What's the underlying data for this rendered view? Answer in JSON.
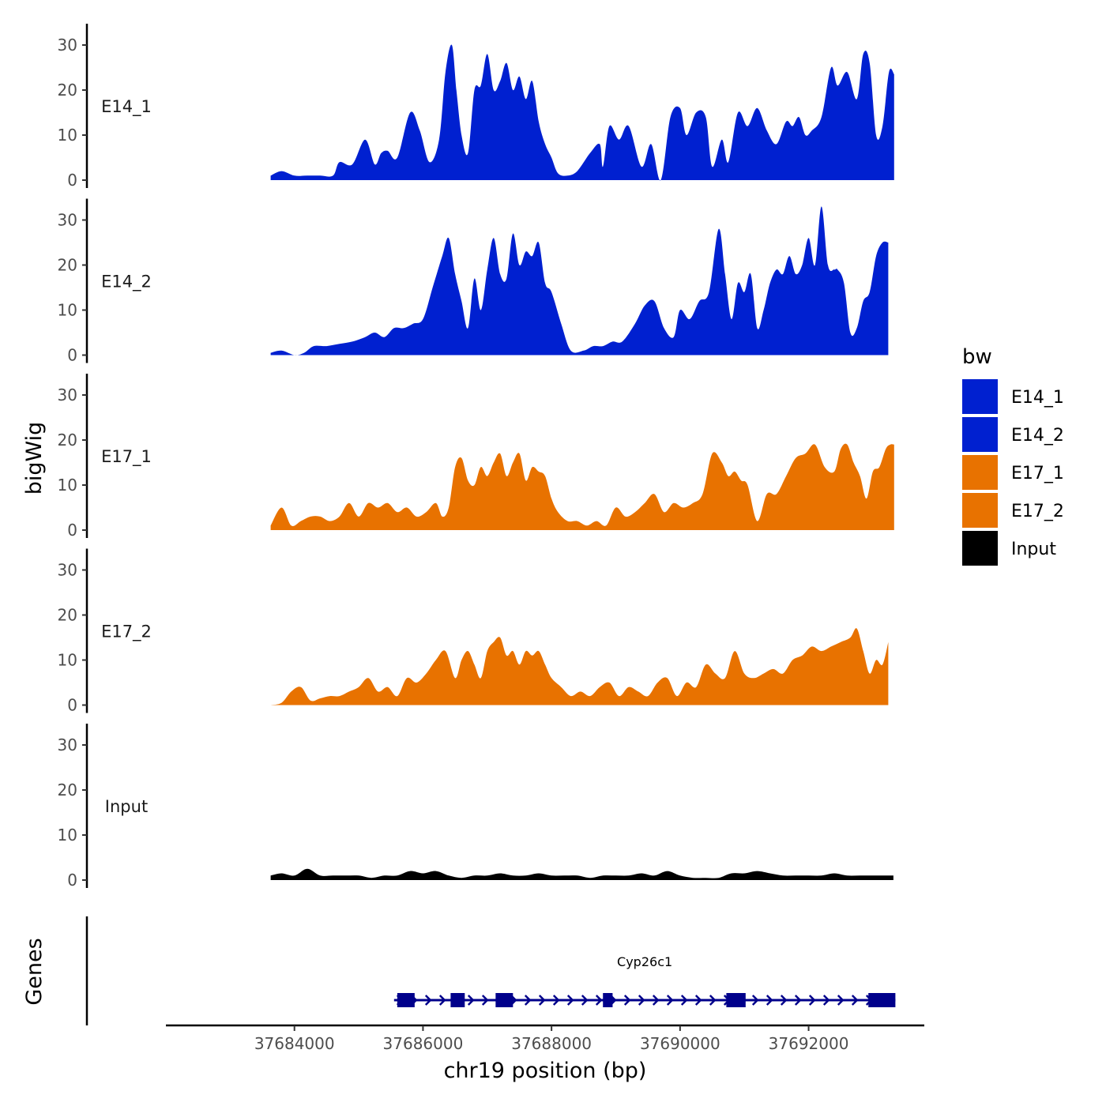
{
  "chart_data": {
    "type": "area",
    "title": "",
    "xlabel": "chr19 position (bp)",
    "ylabel": "bigWig",
    "genes_label": "Genes",
    "xlim": [
      37682000,
      37693800
    ],
    "ylim": [
      0,
      34
    ],
    "x_ticks": [
      37684000,
      37686000,
      37688000,
      37690000,
      37692000
    ],
    "x_tick_labels": [
      "37684000",
      "37686000",
      "37688000",
      "37690000",
      "37692000"
    ],
    "y_ticks": [
      0,
      10,
      20,
      30
    ],
    "y_tick_labels": [
      "0",
      "10",
      "20",
      "30"
    ],
    "legend": {
      "title": "bw",
      "placement": "right",
      "items": [
        {
          "label": "E14_1",
          "color": "#0020D0"
        },
        {
          "label": "E14_2",
          "color": "#0020D0"
        },
        {
          "label": "E17_1",
          "color": "#E87200"
        },
        {
          "label": "E17_2",
          "color": "#E87200"
        },
        {
          "label": "Input",
          "color": "#000000"
        }
      ]
    },
    "series": [
      {
        "name": "E14_1",
        "color": "#0020D0",
        "x": [
          37683630,
          37683800,
          37684000,
          37684200,
          37684400,
          37684600,
          37684700,
          37684900,
          37685100,
          37685250,
          37685350,
          37685450,
          37685600,
          37685800,
          37685950,
          37686100,
          37686250,
          37686350,
          37686450,
          37686520,
          37686600,
          37686700,
          37686800,
          37686900,
          37687000,
          37687100,
          37687200,
          37687300,
          37687400,
          37687500,
          37687600,
          37687700,
          37687800,
          37687900,
          37688000,
          37688100,
          37688250,
          37688400,
          37688600,
          37688750,
          37688800,
          37688900,
          37689050,
          37689200,
          37689400,
          37689550,
          37689700,
          37689850,
          37690000,
          37690100,
          37690250,
          37690400,
          37690500,
          37690650,
          37690750,
          37690900,
          37691050,
          37691200,
          37691350,
          37691500,
          37691650,
          37691750,
          37691850,
          37691950,
          37692050,
          37692200,
          37692350,
          37692450,
          37692600,
          37692750,
          37692850,
          37692950,
          37693050,
          37693150,
          37693250,
          37693330
        ],
        "values": [
          1,
          2,
          1,
          1,
          1,
          1,
          4,
          3.5,
          9,
          3.5,
          6,
          6.5,
          5,
          15,
          11,
          4,
          9,
          24,
          30,
          20,
          10,
          6,
          20,
          21,
          28,
          20,
          22,
          26,
          20,
          23,
          18,
          22,
          13,
          8,
          5,
          1.5,
          1,
          2,
          6,
          8,
          3,
          12,
          9,
          12,
          3,
          8,
          0,
          14,
          16,
          10,
          15,
          14,
          3,
          9,
          4,
          15,
          12,
          16,
          11,
          8,
          13,
          12,
          14,
          10,
          11,
          14,
          25,
          21,
          24,
          18,
          28,
          26,
          10,
          12,
          24,
          23.5
        ]
      },
      {
        "name": "E14_2",
        "color": "#0020D0",
        "x": [
          37683630,
          37683800,
          37684000,
          37684150,
          37684300,
          37684500,
          37684700,
          37684900,
          37685100,
          37685250,
          37685400,
          37685550,
          37685700,
          37685850,
          37686000,
          37686150,
          37686300,
          37686400,
          37686500,
          37686600,
          37686700,
          37686800,
          37686900,
          37687000,
          37687100,
          37687200,
          37687300,
          37687400,
          37687500,
          37687600,
          37687700,
          37687800,
          37687900,
          37688000,
          37688150,
          37688300,
          37688500,
          37688650,
          37688800,
          37688950,
          37689100,
          37689300,
          37689450,
          37689600,
          37689750,
          37689900,
          37690000,
          37690150,
          37690300,
          37690450,
          37690600,
          37690700,
          37690800,
          37690900,
          37691000,
          37691100,
          37691200,
          37691300,
          37691400,
          37691500,
          37691600,
          37691700,
          37691800,
          37691900,
          37692000,
          37692100,
          37692200,
          37692300,
          37692400,
          37692450,
          37692550,
          37692650,
          37692750,
          37692850,
          37692950,
          37693050,
          37693150,
          37693240
        ],
        "values": [
          0.5,
          1,
          0,
          0.5,
          2,
          2,
          2.5,
          3,
          4,
          5,
          4,
          6,
          6,
          7,
          8,
          15,
          22,
          26,
          18,
          12,
          6,
          17,
          10,
          19,
          26,
          18,
          17,
          27,
          20,
          23,
          22,
          25,
          16,
          14,
          7,
          1,
          1,
          2,
          2,
          3,
          3,
          7,
          11,
          12,
          6,
          4,
          10,
          8,
          12,
          14,
          28,
          18,
          8,
          16,
          14,
          18,
          6,
          10,
          16,
          19,
          18,
          22,
          18,
          20,
          26,
          20,
          33,
          20,
          19,
          19,
          16,
          5,
          6,
          12,
          14,
          22,
          25,
          25
        ]
      },
      {
        "name": "E17_1",
        "color": "#E87200",
        "x": [
          37683630,
          37683800,
          37683950,
          37684100,
          37684250,
          37684400,
          37684550,
          37684700,
          37684850,
          37685000,
          37685150,
          37685300,
          37685450,
          37685600,
          37685750,
          37685900,
          37686050,
          37686200,
          37686300,
          37686400,
          37686500,
          37686600,
          37686700,
          37686800,
          37686900,
          37687000,
          37687100,
          37687200,
          37687300,
          37687400,
          37687500,
          37687600,
          37687700,
          37687800,
          37687900,
          37688000,
          37688100,
          37688250,
          37688400,
          37688550,
          37688700,
          37688850,
          37689000,
          37689150,
          37689300,
          37689450,
          37689600,
          37689750,
          37689900,
          37690050,
          37690200,
          37690350,
          37690500,
          37690650,
          37690750,
          37690850,
          37690950,
          37691050,
          37691200,
          37691350,
          37691500,
          37691650,
          37691800,
          37691950,
          37692100,
          37692250,
          37692400,
          37692500,
          37692600,
          37692700,
          37692800,
          37692900,
          37693000,
          37693100,
          37693200,
          37693270,
          37693330
        ],
        "values": [
          1,
          5,
          1,
          2,
          3,
          3,
          2,
          3,
          6,
          3,
          6,
          5,
          6,
          4,
          5,
          3,
          4,
          6,
          3,
          5,
          14,
          16,
          11,
          10,
          14,
          12,
          15,
          17,
          12,
          15,
          17,
          11,
          14,
          13,
          12,
          7,
          4,
          2,
          2,
          1,
          2,
          1,
          5,
          3,
          4,
          6,
          8,
          4,
          6,
          5,
          6,
          8,
          17,
          15,
          12,
          13,
          11,
          10,
          2,
          8,
          8,
          12,
          16,
          17,
          19,
          14,
          13,
          18,
          19,
          15,
          12,
          7,
          13,
          14,
          18,
          19,
          19
        ]
      },
      {
        "name": "E17_2",
        "color": "#E87200",
        "x": [
          37683630,
          37683800,
          37683950,
          37684100,
          37684250,
          37684400,
          37684550,
          37684700,
          37684850,
          37685000,
          37685150,
          37685300,
          37685450,
          37685600,
          37685750,
          37685900,
          37686050,
          37686200,
          37686350,
          37686500,
          37686600,
          37686700,
          37686800,
          37686900,
          37687000,
          37687100,
          37687200,
          37687300,
          37687400,
          37687500,
          37687600,
          37687700,
          37687800,
          37687900,
          37688000,
          37688150,
          37688300,
          37688450,
          37688600,
          37688750,
          37688900,
          37689050,
          37689200,
          37689350,
          37689500,
          37689650,
          37689800,
          37689950,
          37690100,
          37690250,
          37690400,
          37690550,
          37690700,
          37690850,
          37691000,
          37691150,
          37691300,
          37691450,
          37691600,
          37691750,
          37691900,
          37692050,
          37692200,
          37692350,
          37692500,
          37692650,
          37692750,
          37692850,
          37692950,
          37693050,
          37693150,
          37693240
        ],
        "values": [
          0,
          0.5,
          3,
          4,
          1,
          1.5,
          2,
          2,
          3,
          4,
          6,
          3,
          4,
          2,
          6,
          5,
          7,
          10,
          12,
          6,
          10,
          12,
          9,
          6,
          12,
          14,
          15,
          11,
          12,
          9,
          12,
          11,
          12,
          9,
          6,
          4,
          2,
          3,
          2,
          4,
          5,
          2,
          4,
          3,
          2,
          5,
          6,
          2,
          5,
          4,
          9,
          7,
          6,
          12,
          7,
          6,
          7,
          8,
          7,
          10,
          11,
          13,
          12,
          13,
          14,
          15,
          17,
          12,
          7,
          10,
          9,
          14
        ]
      },
      {
        "name": "Input",
        "color": "#000000",
        "x": [
          37683630,
          37683800,
          37684000,
          37684200,
          37684400,
          37684600,
          37684800,
          37685000,
          37685200,
          37685400,
          37685600,
          37685800,
          37686000,
          37686200,
          37686400,
          37686600,
          37686800,
          37687000,
          37687200,
          37687400,
          37687600,
          37687800,
          37688000,
          37688200,
          37688400,
          37688600,
          37688800,
          37689000,
          37689200,
          37689400,
          37689600,
          37689800,
          37690000,
          37690200,
          37690400,
          37690600,
          37690800,
          37691000,
          37691200,
          37691400,
          37691600,
          37691800,
          37692000,
          37692200,
          37692400,
          37692600,
          37692800,
          37693000,
          37693200,
          37693320
        ],
        "values": [
          1,
          1.5,
          1,
          2.5,
          1,
          1,
          1,
          1,
          0.5,
          1,
          1,
          2,
          1.5,
          2,
          1,
          0.5,
          1,
          1,
          1.5,
          1,
          1,
          1.5,
          1,
          1,
          1,
          0.5,
          1,
          1,
          1,
          1.5,
          1,
          2,
          1,
          0.5,
          0.5,
          0.5,
          1.5,
          1.5,
          2,
          1.5,
          1,
          1,
          1,
          1,
          1.5,
          1,
          1,
          1,
          1,
          1
        ]
      }
    ],
    "gene": {
      "name": "Cyp26c1",
      "start": 37685550,
      "end": 37693350,
      "strand": "+",
      "color": "#00008B",
      "exons": [
        [
          37685600,
          37685870
        ],
        [
          37686430,
          37686650
        ],
        [
          37687130,
          37687400
        ],
        [
          37688800,
          37688950
        ],
        [
          37690720,
          37691020
        ],
        [
          37692930,
          37693350
        ]
      ]
    }
  }
}
